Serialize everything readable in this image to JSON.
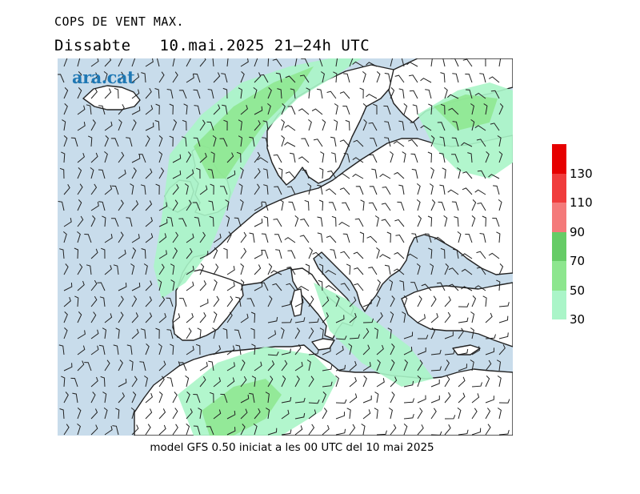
{
  "header": {
    "title": "COPS DE VENT MAX.",
    "day": "Dissabte",
    "date_time": "10.mai.2025 21–24h UTC"
  },
  "logo": {
    "text": "ara.cat"
  },
  "legend": {
    "levels": [
      "30",
      "50",
      "70",
      "90",
      "110",
      "130"
    ],
    "colors": [
      "#aaf5c8",
      "#8de68e",
      "#66cc66",
      "#f47a7a",
      "#f03c3c",
      "#e60000"
    ],
    "top_color": "#e60000"
  },
  "map": {
    "sea_color": "#c8dceb",
    "land_color": "#ffffff",
    "coast_color": "#222222"
  },
  "footer": {
    "text": "model GFS 0.50 iniciat a les 00 UTC del 10 mai 2025"
  }
}
